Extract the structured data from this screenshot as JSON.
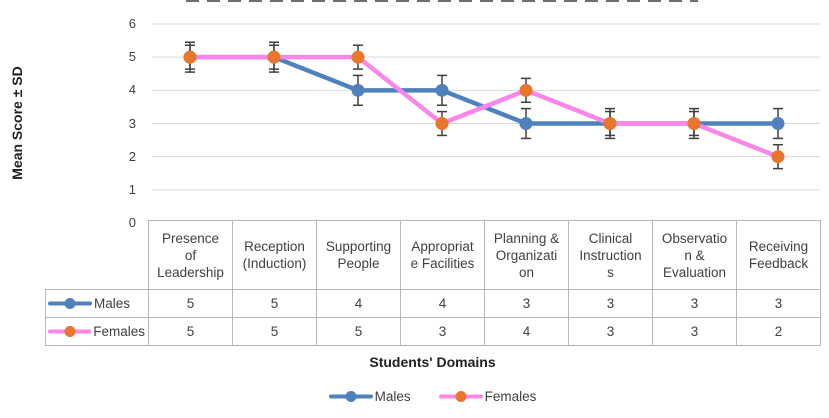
{
  "chart_data": {
    "type": "line",
    "categories": [
      "Presence of Leadership",
      "Reception (Induction)",
      "Supporting People",
      "Appropriate Facilities",
      "Planning & Organization",
      "Clinical Instructions",
      "Observation & Evaluation",
      "Receiving Feedback"
    ],
    "category_wraps": [
      [
        "Presence",
        "of",
        "Leadership"
      ],
      [
        "Reception",
        "(Induction)"
      ],
      [
        "Supporting",
        "People"
      ],
      [
        "Appropriat",
        "e Facilities"
      ],
      [
        "Planning &",
        "Organizati",
        "on"
      ],
      [
        "Clinical",
        "Instruction",
        "s"
      ],
      [
        "Observatio",
        "n &",
        "Evaluation"
      ],
      [
        "Receiving",
        "Feedback"
      ]
    ],
    "series": [
      {
        "name": "Males",
        "values": [
          5,
          5,
          4,
          4,
          3,
          3,
          3,
          3
        ],
        "line_color": "#4F81BD",
        "marker_color": "#4F81BD",
        "error": 0.45
      },
      {
        "name": "Females",
        "values": [
          5,
          5,
          5,
          3,
          4,
          3,
          3,
          2
        ],
        "line_color": "#F986E9",
        "marker_color": "#E8762C",
        "error": 0.36
      }
    ],
    "ylabel": "Mean Score ± SD",
    "xlabel": "Students' Domains",
    "ylim": [
      0,
      6
    ],
    "yticks": [
      0,
      1,
      2,
      3,
      4,
      5,
      6
    ],
    "grid": "horizontal",
    "gridline_color": "#d9d9d9",
    "error_bar_color": "#404040",
    "legend_position": "bottom",
    "has_data_table": true
  }
}
